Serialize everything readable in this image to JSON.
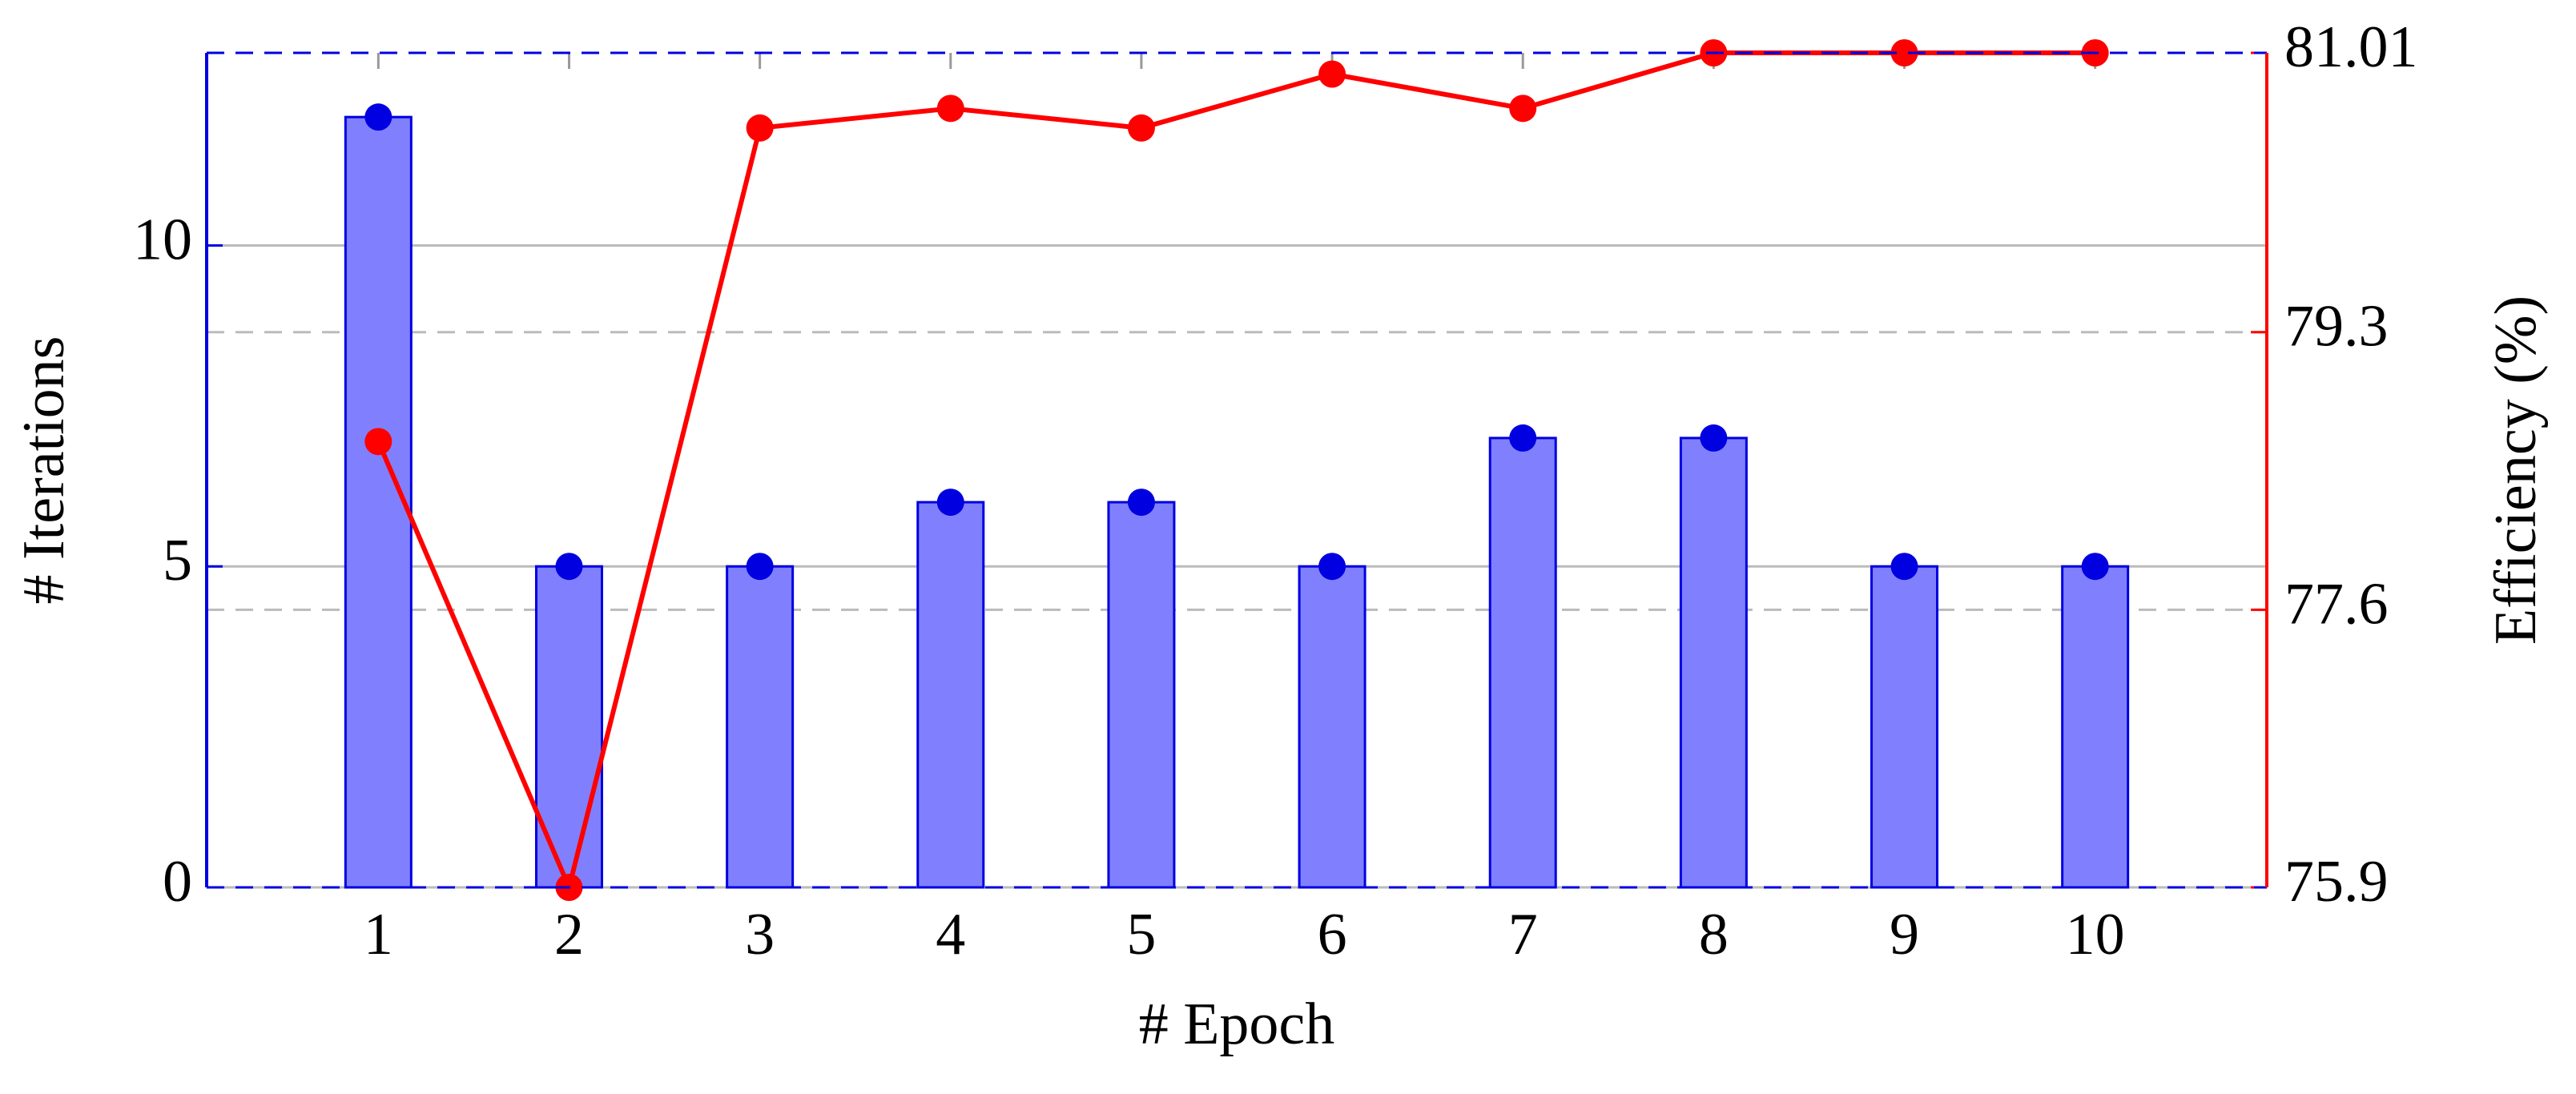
{
  "chart_data": {
    "type": "bar",
    "xlabel": "# Epoch",
    "ylabel": "# Iterations",
    "y2label": "Efficiency (%)",
    "x": [
      1,
      2,
      3,
      4,
      5,
      6,
      7,
      8,
      9,
      10
    ],
    "xlim": [
      0.1,
      10.9
    ],
    "xticks": [
      1,
      2,
      3,
      4,
      5,
      6,
      7,
      8,
      9,
      10
    ],
    "ylim": [
      0,
      13
    ],
    "yticks": [
      0,
      5,
      10
    ],
    "y2lim": [
      75.9,
      81.01
    ],
    "y2ticks": [
      75.9,
      77.6,
      79.3,
      81.01
    ],
    "grid": true,
    "series": [
      {
        "type": "bar",
        "color": "#8080ff",
        "edge_color": "#0000e0",
        "values": [
          12,
          5,
          5,
          6,
          6,
          5,
          7,
          7,
          5,
          5
        ]
      },
      {
        "type": "line",
        "axis": "y2",
        "color": "#ff0000",
        "values": [
          78.63,
          75.9,
          80.55,
          80.67,
          80.55,
          80.88,
          80.67,
          81.01,
          81.01,
          81.01
        ]
      }
    ]
  }
}
